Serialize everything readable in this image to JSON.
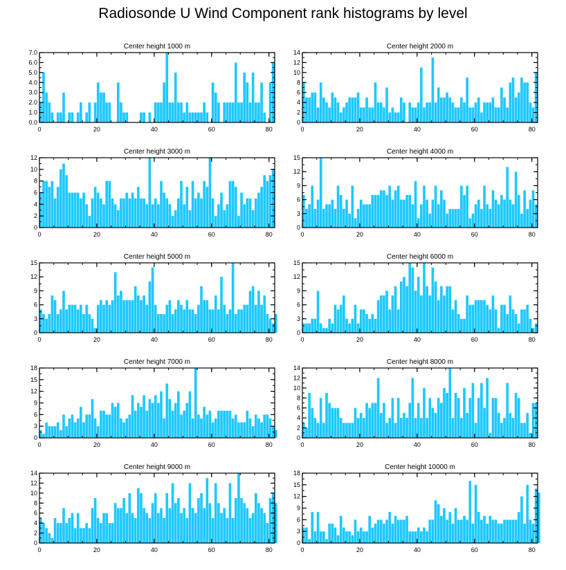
{
  "figure": {
    "title": "Radiosonde U Wind Component rank histograms by level",
    "bar_color": "#1ec8ff"
  },
  "chart_data": [
    {
      "type": "bar",
      "title": "Center height 1000 m",
      "xlim": [
        0,
        82
      ],
      "xticks": [
        0,
        20,
        40,
        60,
        80
      ],
      "ylim": [
        0,
        7
      ],
      "yticks": [
        0,
        1,
        2,
        3,
        4,
        5,
        6,
        7
      ],
      "ytick_labels": [
        "0.0",
        "1.0",
        "2.0",
        "3.0",
        "4.0",
        "5.0",
        "6.0",
        "7.0"
      ],
      "values": [
        2,
        5,
        3,
        2,
        1,
        0,
        1,
        1,
        3,
        0,
        1,
        1,
        0,
        1,
        2,
        0,
        1,
        2,
        0,
        2,
        4,
        3,
        3,
        2,
        2,
        0,
        0,
        4,
        2,
        1,
        1,
        0,
        0,
        0,
        0,
        1,
        1,
        0,
        1,
        0,
        2,
        2,
        2,
        4,
        7,
        2,
        2,
        5,
        2,
        2,
        1,
        2,
        1,
        1,
        1,
        1,
        1,
        2,
        1,
        0,
        4,
        3,
        2,
        0,
        2,
        2,
        2,
        2,
        6,
        2,
        2,
        5,
        4,
        2,
        5,
        2,
        2,
        4,
        1,
        0,
        4,
        6
      ]
    },
    {
      "type": "bar",
      "title": "Center height 2000 m",
      "xlim": [
        0,
        82
      ],
      "xticks": [
        0,
        20,
        40,
        60,
        80
      ],
      "ylim": [
        0,
        14
      ],
      "yticks": [
        0,
        2,
        4,
        6,
        8,
        10,
        12,
        14
      ],
      "values": [
        8,
        5,
        5,
        6,
        6,
        3,
        8,
        5,
        4,
        3,
        6,
        5,
        4,
        2,
        3,
        4,
        5,
        5,
        5,
        6,
        3,
        3,
        5,
        3,
        3,
        8,
        4,
        4,
        3,
        7,
        2,
        3,
        2,
        2,
        5,
        4,
        0,
        4,
        3,
        3,
        4,
        11,
        3,
        4,
        4,
        13,
        4,
        7,
        5,
        5,
        6,
        5,
        4,
        3,
        3,
        5,
        4,
        9,
        3,
        3,
        4,
        5,
        2,
        4,
        4,
        4,
        5,
        3,
        3,
        7,
        5,
        3,
        8,
        9,
        5,
        6,
        9,
        8,
        8,
        4,
        3,
        10
      ]
    },
    {
      "type": "bar",
      "title": "Center height 3000 m",
      "xlim": [
        0,
        82
      ],
      "xticks": [
        0,
        20,
        40,
        60,
        80
      ],
      "ylim": [
        0,
        12
      ],
      "yticks": [
        0,
        2,
        4,
        6,
        8,
        10,
        12
      ],
      "values": [
        6,
        8,
        8,
        7,
        8,
        5,
        7,
        10,
        11,
        9,
        6,
        6,
        6,
        6,
        5,
        6,
        4,
        2,
        5,
        7,
        6,
        5,
        4,
        8,
        8,
        5,
        4,
        3,
        5,
        5,
        6,
        5,
        6,
        5,
        7,
        5,
        5,
        4,
        12,
        4,
        5,
        4,
        8,
        6,
        5,
        4,
        2,
        3,
        5,
        8,
        4,
        7,
        3,
        8,
        5,
        6,
        5,
        8,
        7,
        12,
        5,
        2,
        4,
        6,
        3,
        4,
        8,
        8,
        7,
        2,
        6,
        4,
        5,
        5,
        3,
        5,
        6,
        7,
        9,
        8,
        9,
        10
      ]
    },
    {
      "type": "bar",
      "title": "Center height 4000 m",
      "xlim": [
        0,
        82
      ],
      "xticks": [
        0,
        20,
        40,
        60,
        80
      ],
      "ylim": [
        0,
        15
      ],
      "yticks": [
        0,
        3,
        6,
        9,
        12,
        15
      ],
      "values": [
        7,
        4,
        5,
        9,
        4,
        6,
        15,
        4,
        5,
        5,
        6,
        4,
        9,
        7,
        4,
        6,
        3,
        9,
        2,
        4,
        6,
        5,
        5,
        5,
        7,
        7,
        7,
        8,
        8,
        7,
        9,
        6,
        8,
        9,
        6,
        6,
        7,
        7,
        5,
        10,
        2,
        5,
        9,
        6,
        3,
        6,
        9,
        5,
        8,
        6,
        3,
        4,
        4,
        4,
        4,
        9,
        7,
        9,
        2,
        3,
        5,
        6,
        4,
        9,
        5,
        4,
        8,
        6,
        5,
        7,
        6,
        13,
        6,
        5,
        12,
        7,
        3,
        8,
        4,
        6,
        8,
        5
      ]
    },
    {
      "type": "bar",
      "title": "Center height 5000 m",
      "xlim": [
        0,
        82
      ],
      "xticks": [
        0,
        20,
        40,
        60,
        80
      ],
      "ylim": [
        0,
        15
      ],
      "yticks": [
        0,
        3,
        6,
        9,
        12,
        15
      ],
      "values": [
        5,
        4,
        3,
        4,
        8,
        7,
        4,
        5,
        9,
        5,
        6,
        6,
        6,
        5,
        6,
        4,
        6,
        4,
        3,
        1,
        6,
        7,
        6,
        7,
        6,
        7,
        13,
        8,
        9,
        7,
        7,
        7,
        7,
        10,
        8,
        7,
        8,
        6,
        11,
        14,
        6,
        4,
        4,
        4,
        6,
        7,
        4,
        5,
        7,
        6,
        5,
        7,
        5,
        5,
        4,
        6,
        10,
        7,
        7,
        5,
        5,
        8,
        5,
        12,
        6,
        4,
        5,
        15,
        4,
        5,
        5,
        6,
        6,
        9,
        10,
        6,
        9,
        6,
        8,
        4,
        3,
        2,
        4
      ]
    },
    {
      "type": "bar",
      "title": "Center height 6000 m",
      "xlim": [
        0,
        82
      ],
      "xticks": [
        0,
        20,
        40,
        60,
        80
      ],
      "ylim": [
        0,
        15
      ],
      "yticks": [
        0,
        3,
        6,
        9,
        12,
        15
      ],
      "values": [
        2,
        2,
        2,
        3,
        3,
        9,
        2,
        1,
        1,
        3,
        2,
        6,
        5,
        6,
        8,
        3,
        2,
        3,
        6,
        2,
        5,
        5,
        4,
        3,
        4,
        3,
        7,
        8,
        8,
        9,
        5,
        8,
        10,
        5,
        11,
        12,
        10,
        15,
        14,
        9,
        12,
        8,
        15,
        10,
        8,
        14,
        11,
        7,
        10,
        8,
        10,
        10,
        5,
        7,
        4,
        3,
        3,
        8,
        6,
        6,
        7,
        7,
        7,
        7,
        6,
        5,
        8,
        5,
        1,
        6,
        6,
        4,
        8,
        5,
        4,
        2,
        5,
        5,
        6,
        3,
        1,
        2
      ]
    },
    {
      "type": "bar",
      "title": "Center height 7000 m",
      "xlim": [
        0,
        82
      ],
      "xticks": [
        0,
        20,
        40,
        60,
        80
      ],
      "ylim": [
        0,
        18
      ],
      "yticks": [
        0,
        3,
        6,
        9,
        12,
        15,
        18
      ],
      "values": [
        2,
        1,
        4,
        3,
        3,
        3,
        4,
        2,
        6,
        3,
        5,
        6,
        4,
        5,
        8,
        4,
        6,
        6,
        10,
        5,
        3,
        7,
        7,
        6,
        6,
        9,
        8,
        9,
        5,
        4,
        5,
        6,
        11,
        7,
        9,
        8,
        11,
        7,
        10,
        9,
        11,
        9,
        12,
        5,
        14,
        10,
        7,
        9,
        12,
        6,
        7,
        9,
        12,
        5,
        18,
        6,
        5,
        8,
        6,
        7,
        4,
        5,
        7,
        7,
        7,
        7,
        7,
        5,
        6,
        4,
        4,
        4,
        7,
        5,
        3,
        6,
        5,
        4,
        6,
        6,
        5,
        3,
        2
      ]
    },
    {
      "type": "bar",
      "title": "Center height 8000 m",
      "xlim": [
        0,
        82
      ],
      "xticks": [
        0,
        20,
        40,
        60,
        80
      ],
      "ylim": [
        0,
        14
      ],
      "yticks": [
        0,
        2,
        4,
        6,
        8,
        10,
        12,
        14
      ],
      "values": [
        3,
        2,
        9,
        6,
        4,
        3,
        8,
        3,
        9,
        7,
        6,
        6,
        6,
        4,
        3,
        3,
        3,
        3,
        6,
        4,
        5,
        4,
        7,
        6,
        7,
        7,
        12,
        5,
        7,
        3,
        4,
        8,
        3,
        8,
        4,
        5,
        4,
        7,
        12,
        4,
        7,
        4,
        10,
        4,
        8,
        6,
        5,
        8,
        7,
        10,
        9,
        14,
        4,
        9,
        8,
        4,
        10,
        5,
        8,
        11,
        3,
        8,
        11,
        6,
        12,
        1,
        8,
        8,
        5,
        3,
        4,
        11,
        5,
        4,
        9,
        8,
        3,
        3,
        5,
        1,
        7,
        7
      ]
    },
    {
      "type": "bar",
      "title": "Center height 9000 m",
      "xlim": [
        0,
        82
      ],
      "xticks": [
        0,
        20,
        40,
        60,
        80
      ],
      "ylim": [
        0,
        14
      ],
      "yticks": [
        0,
        2,
        4,
        6,
        8,
        10,
        12,
        14
      ],
      "values": [
        5,
        4,
        3,
        2,
        1,
        5,
        4,
        4,
        7,
        4,
        5,
        6,
        3,
        6,
        3,
        3,
        4,
        3,
        7,
        9,
        5,
        4,
        6,
        6,
        4,
        4,
        8,
        7,
        7,
        9,
        6,
        10,
        6,
        5,
        11,
        10,
        7,
        6,
        5,
        8,
        10,
        6,
        7,
        5,
        10,
        7,
        12,
        8,
        9,
        6,
        7,
        5,
        12,
        7,
        6,
        9,
        10,
        7,
        13,
        8,
        5,
        12,
        8,
        6,
        7,
        5,
        12,
        5,
        9,
        14,
        9,
        8,
        7,
        5,
        6,
        10,
        8,
        7,
        6,
        4,
        9,
        10,
        8
      ]
    },
    {
      "type": "bar",
      "title": "Center height 10000 m",
      "xlim": [
        0,
        82
      ],
      "xticks": [
        0,
        20,
        40,
        60,
        80
      ],
      "ylim": [
        0,
        18
      ],
      "yticks": [
        0,
        3,
        6,
        9,
        12,
        15,
        18
      ],
      "values": [
        4,
        4,
        1,
        8,
        3,
        8,
        3,
        3,
        1,
        5,
        5,
        4,
        2,
        7,
        4,
        3,
        3,
        2,
        6,
        3,
        4,
        3,
        3,
        7,
        4,
        5,
        6,
        6,
        5,
        6,
        8,
        5,
        7,
        6,
        6,
        6,
        7,
        3,
        3,
        3,
        4,
        3,
        4,
        3,
        6,
        6,
        11,
        10,
        7,
        9,
        6,
        8,
        5,
        9,
        6,
        6,
        7,
        6,
        16,
        5,
        15,
        8,
        6,
        7,
        5,
        7,
        6,
        6,
        5,
        5,
        6,
        6,
        6,
        6,
        6,
        8,
        12,
        5,
        15,
        6,
        5,
        14,
        13
      ]
    }
  ]
}
